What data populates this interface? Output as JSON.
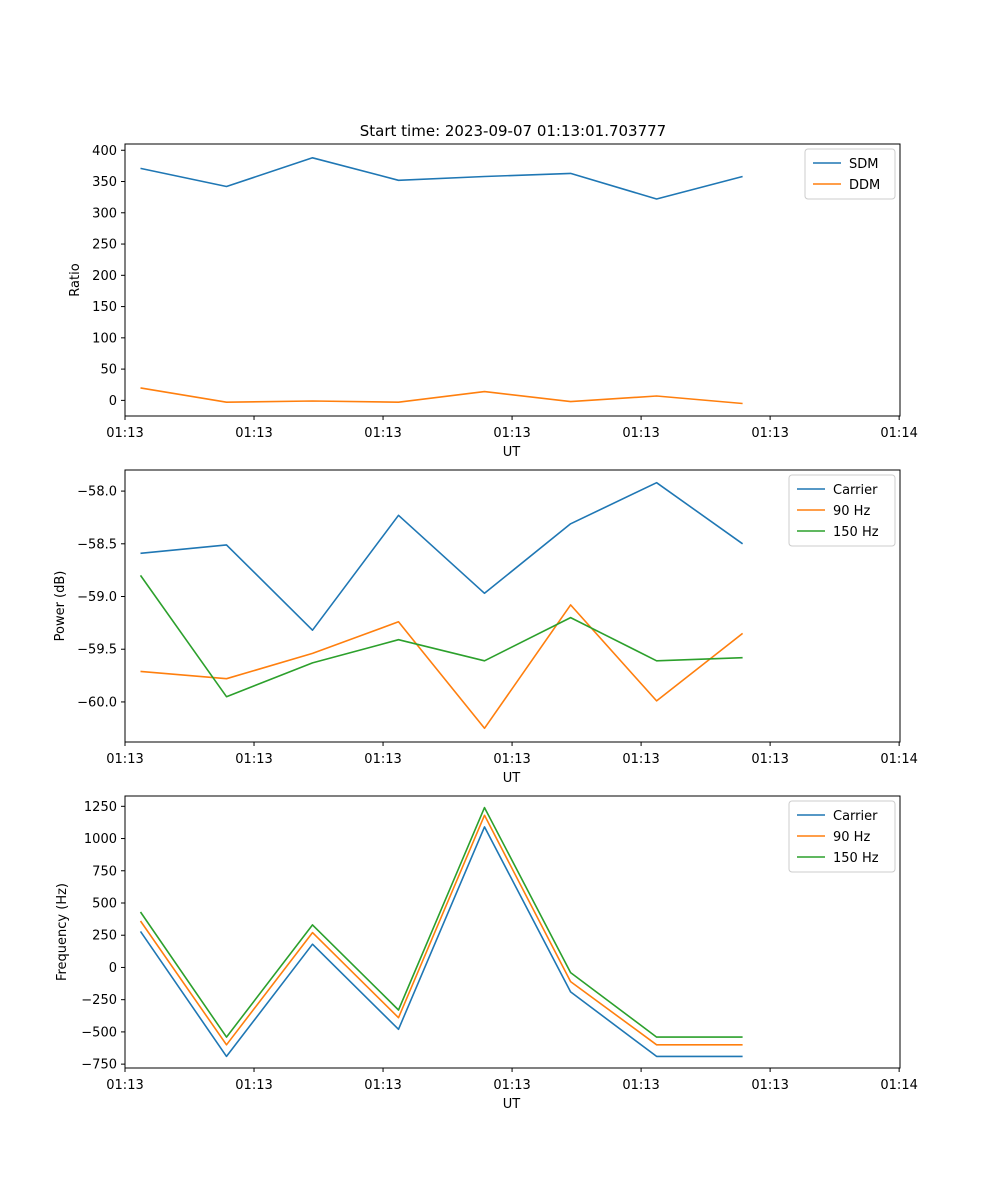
{
  "figure_title": "Start time: 2023-09-07 01:13:01.703777",
  "colors": {
    "c0": "#1f77b4",
    "c1": "#ff7f0e",
    "c2": "#2ca02c"
  },
  "chart_data": [
    {
      "type": "line",
      "title": "Start time: 2023-09-07 01:13:01.703777",
      "xlabel": "UT",
      "ylabel": "Ratio",
      "x_index": [
        1,
        2,
        3,
        4,
        5,
        6,
        7,
        8
      ],
      "xlim": [
        0.82,
        9.83
      ],
      "xticks": [
        {
          "v": 0.82,
          "label": "01:13"
        },
        {
          "v": 2.32,
          "label": "01:13"
        },
        {
          "v": 3.82,
          "label": "01:13"
        },
        {
          "v": 5.32,
          "label": "01:13"
        },
        {
          "v": 6.82,
          "label": "01:13"
        },
        {
          "v": 8.32,
          "label": "01:13"
        },
        {
          "v": 9.82,
          "label": "01:14"
        }
      ],
      "ylim": [
        -25,
        410
      ],
      "yticks": [
        {
          "v": 0,
          "label": "0"
        },
        {
          "v": 50,
          "label": "50"
        },
        {
          "v": 100,
          "label": "100"
        },
        {
          "v": 150,
          "label": "150"
        },
        {
          "v": 200,
          "label": "200"
        },
        {
          "v": 250,
          "label": "250"
        },
        {
          "v": 300,
          "label": "300"
        },
        {
          "v": 350,
          "label": "350"
        },
        {
          "v": 400,
          "label": "400"
        }
      ],
      "legend": "top-right",
      "series": [
        {
          "name": "SDM",
          "color": "#1f77b4",
          "values": [
            371,
            342,
            388,
            352,
            358,
            363,
            322,
            358
          ]
        },
        {
          "name": "DDM",
          "color": "#ff7f0e",
          "values": [
            20,
            -3,
            -1,
            -3,
            14,
            -2,
            7,
            -5
          ]
        }
      ]
    },
    {
      "type": "line",
      "xlabel": "UT",
      "ylabel": "Power (dB)",
      "x_index": [
        1,
        2,
        3,
        4,
        5,
        6,
        7,
        8
      ],
      "xlim": [
        0.82,
        9.83
      ],
      "xticks": [
        {
          "v": 0.82,
          "label": "01:13"
        },
        {
          "v": 2.32,
          "label": "01:13"
        },
        {
          "v": 3.82,
          "label": "01:13"
        },
        {
          "v": 5.32,
          "label": "01:13"
        },
        {
          "v": 6.82,
          "label": "01:13"
        },
        {
          "v": 8.32,
          "label": "01:13"
        },
        {
          "v": 9.82,
          "label": "01:14"
        }
      ],
      "ylim": [
        -60.38,
        -57.8
      ],
      "yticks": [
        {
          "v": -60.0,
          "label": "−60.0"
        },
        {
          "v": -59.5,
          "label": "−59.5"
        },
        {
          "v": -59.0,
          "label": "−59.0"
        },
        {
          "v": -58.5,
          "label": "−58.5"
        },
        {
          "v": -58.0,
          "label": "−58.0"
        }
      ],
      "legend": "top-right",
      "series": [
        {
          "name": "Carrier",
          "color": "#1f77b4",
          "values": [
            -58.59,
            -58.51,
            -59.32,
            -58.23,
            -58.97,
            -58.31,
            -57.92,
            -58.5
          ]
        },
        {
          "name": "90 Hz",
          "color": "#ff7f0e",
          "values": [
            -59.71,
            -59.78,
            -59.54,
            -59.24,
            -60.25,
            -59.08,
            -59.99,
            -59.35
          ]
        },
        {
          "name": "150 Hz",
          "color": "#2ca02c",
          "values": [
            -58.8,
            -59.95,
            -59.63,
            -59.41,
            -59.61,
            -59.2,
            -59.61,
            -59.58
          ]
        }
      ]
    },
    {
      "type": "line",
      "xlabel": "UT",
      "ylabel": "Frequency (Hz)",
      "x_index": [
        1,
        2,
        3,
        4,
        5,
        6,
        7,
        8
      ],
      "xlim": [
        0.82,
        9.83
      ],
      "xticks": [
        {
          "v": 0.82,
          "label": "01:13"
        },
        {
          "v": 2.32,
          "label": "01:13"
        },
        {
          "v": 3.82,
          "label": "01:13"
        },
        {
          "v": 5.32,
          "label": "01:13"
        },
        {
          "v": 6.82,
          "label": "01:13"
        },
        {
          "v": 8.32,
          "label": "01:13"
        },
        {
          "v": 9.82,
          "label": "01:14"
        }
      ],
      "ylim": [
        -780,
        1330
      ],
      "yticks": [
        {
          "v": -750,
          "label": "−750"
        },
        {
          "v": -500,
          "label": "−500"
        },
        {
          "v": -250,
          "label": "−250"
        },
        {
          "v": 0,
          "label": "0"
        },
        {
          "v": 250,
          "label": "250"
        },
        {
          "v": 500,
          "label": "500"
        },
        {
          "v": 750,
          "label": "750"
        },
        {
          "v": 1000,
          "label": "1000"
        },
        {
          "v": 1250,
          "label": "1250"
        }
      ],
      "legend": "top-right",
      "series": [
        {
          "name": "Carrier",
          "color": "#1f77b4",
          "values": [
            280,
            -690,
            180,
            -480,
            1090,
            -190,
            -690,
            -690
          ]
        },
        {
          "name": "90 Hz",
          "color": "#ff7f0e",
          "values": [
            360,
            -600,
            270,
            -390,
            1180,
            -110,
            -600,
            -600
          ]
        },
        {
          "name": "150 Hz",
          "color": "#2ca02c",
          "values": [
            430,
            -540,
            330,
            -330,
            1240,
            -40,
            -540,
            -540
          ]
        }
      ]
    }
  ]
}
